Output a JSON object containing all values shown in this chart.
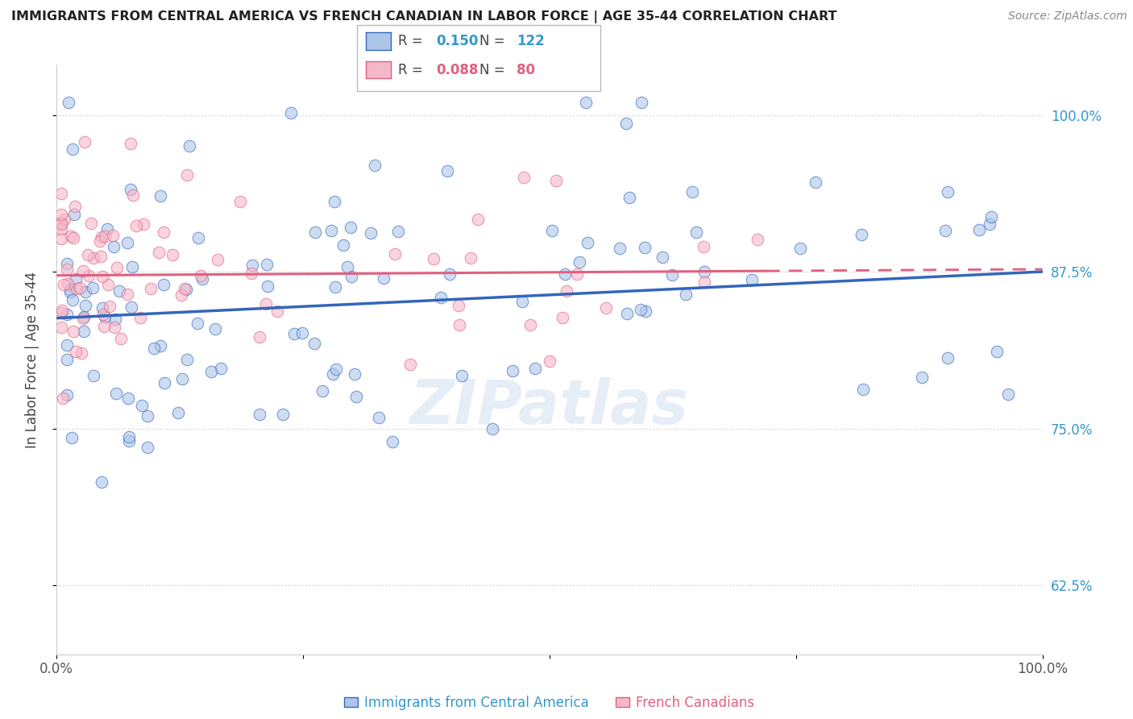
{
  "title": "IMMIGRANTS FROM CENTRAL AMERICA VS FRENCH CANADIAN IN LABOR FORCE | AGE 35-44 CORRELATION CHART",
  "source": "Source: ZipAtlas.com",
  "ylabel": "In Labor Force | Age 35-44",
  "blue_label": "Immigrants from Central America",
  "pink_label": "French Canadians",
  "blue_R": 0.15,
  "blue_N": 122,
  "pink_R": 0.088,
  "pink_N": 80,
  "blue_color": "#adc6e8",
  "pink_color": "#f5b8c8",
  "blue_line_color": "#3366bb",
  "pink_line_color": "#e06080",
  "xmin": 0.0,
  "xmax": 1.0,
  "ymin": 0.57,
  "ymax": 1.04,
  "yticks": [
    0.625,
    0.75,
    0.875,
    1.0
  ],
  "ytick_labels": [
    "62.5%",
    "75.0%",
    "87.5%",
    "100.0%"
  ],
  "background_color": "#ffffff",
  "watermark": "ZIPatlas",
  "legend_blue_R": "0.150",
  "legend_blue_N": "122",
  "legend_pink_R": "0.088",
  "legend_pink_N": "80",
  "blue_number_color": "#3399cc",
  "pink_number_color": "#e06080",
  "grid_color": "#cccccc",
  "title_color": "#222222",
  "source_color": "#888888",
  "ylabel_color": "#444444",
  "tick_label_color": "#3399cc"
}
